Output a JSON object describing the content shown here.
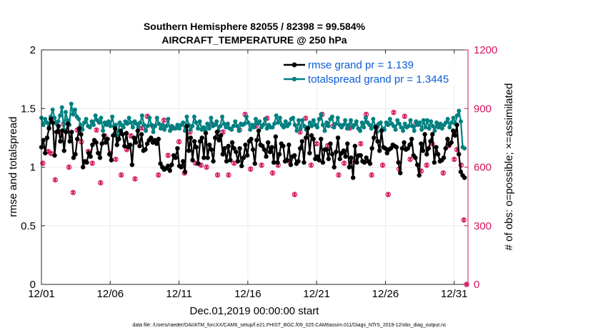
{
  "chart_data": {
    "type": "line",
    "title": "Southern Hemisphere 82055 / 82398 = 99.584%",
    "subtitle": "AIRCRAFT_TEMPERATURE @ 250 hPa",
    "xlabel": "Dec.01,2019 00:00:00 start",
    "ylabel": "rmse and totalspread",
    "y2label": "# of obs: o=possible; ×=assimilated",
    "footer": "data file: /Users/raeder/DAI/ATM_forcXX/CAM6_setup/f.e21.FHIST_BGC.f09_025.CAM6assim.011/Diags_NTrS_2019-12/obs_diag_output.nc",
    "x_tick_labels": [
      "12/01",
      "12/06",
      "12/11",
      "12/16",
      "12/21",
      "12/26",
      "12/31"
    ],
    "x_tick_days": [
      0,
      5,
      10,
      15,
      20,
      25,
      30
    ],
    "xlim": [
      0,
      31
    ],
    "ylim": [
      0,
      2
    ],
    "y_ticks": [
      0,
      0.5,
      1,
      1.5,
      2
    ],
    "y_tick_labels": [
      "0",
      "0.5",
      "1",
      "1.5",
      "2"
    ],
    "y2lim": [
      0,
      1200
    ],
    "y2_ticks": [
      0,
      300,
      600,
      900,
      1200
    ],
    "y2_tick_labels": [
      "0",
      "300",
      "600",
      "900",
      "1200"
    ],
    "colors": {
      "rmse": "#000000",
      "spread": "#008080",
      "obs": "#d4135d",
      "legend_text": "#0b5cd6",
      "grid": "#ebebeb"
    },
    "series": [
      {
        "name": "rmse grand pr = 1.139",
        "key": "rmse",
        "values": [
          1.17,
          1.23,
          1.12,
          1.25,
          1.33,
          1.41,
          1.38,
          1.1,
          1.3,
          1.35,
          1.22,
          1.31,
          1.14,
          1.3,
          1.37,
          1.22,
          1.3,
          1.08,
          1.11,
          1.24,
          1.33,
          1.28,
          1.0,
          1.05,
          1.04,
          1.12,
          1.09,
          1.19,
          1.23,
          1.21,
          1.12,
          1.08,
          1.2,
          1.27,
          1.21,
          1.24,
          1.11,
          1.06,
          1.27,
          1.33,
          1.19,
          1.24,
          1.31,
          1.28,
          1.18,
          1.29,
          1.17,
          1.19,
          1.02,
          1.25,
          1.21,
          1.31,
          1.18,
          1.28,
          1.14,
          1.15,
          1.2,
          1.23,
          1.25,
          1.21,
          1.23,
          1.2,
          1.24,
          1.03,
          1.0,
          0.98,
          0.99,
          1.01,
          0.97,
          1.02,
          1.1,
          1.08,
          1.16,
          1.01,
          1.0,
          1.05,
          0.96,
          1.35,
          1.14,
          1.25,
          1.06,
          1.22,
          1.17,
          1.03,
          1.22,
          1.25,
          1.08,
          1.29,
          1.08,
          1.19,
          1.15,
          1.05,
          1.25,
          1.3,
          1.23,
          1.27,
          1.11,
          1.16,
          1.05,
          1.18,
          1.06,
          1.21,
          1.16,
          1.13,
          1.05,
          1.16,
          1.01,
          1.08,
          1.19,
          1.1,
          1.22,
          1.24,
          1.15,
          1.03,
          1.23,
          1.31,
          1.19,
          1.18,
          1.15,
          1.09,
          1.21,
          1.13,
          1.17,
          1.04,
          1.26,
          1.04,
          1.11,
          1.2,
          1.18,
          1.05,
          1.06,
          1.19,
          1.02,
          1.09,
          1.1,
          1.03,
          1.05,
          1.16,
          1.22,
          1.04,
          1.25,
          1.33,
          1.12,
          1.27,
          1.24,
          1.07,
          1.09,
          1.06,
          1.24,
          1.04,
          1.15,
          1.15,
          1.07,
          1.2,
          1.11,
          1.0,
          1.13,
          1.25,
          1.07,
          1.12,
          1.14,
          1.09,
          1.2,
          1.0,
          1.08,
          0.91,
          1.18,
          1.04,
          1.1,
          1.1,
          1.05,
          1.04,
          1.08,
          1.05,
          1.03,
          1.16,
          1.25,
          1.34,
          1.22,
          1.14,
          1.31,
          1.17,
          1.16,
          1.12,
          1.15,
          1.16,
          1.19,
          1.18,
          1.17,
          1.04,
          0.95,
          1.16,
          1.21,
          1.15,
          1.16,
          1.19,
          1.24,
          1.1,
          1.08,
          1.02,
          0.93,
          1.2,
          1.14,
          1.28,
          1.11,
          1.16,
          1.22,
          1.28,
          1.04,
          1.17,
          1.11,
          1.05,
          1.06,
          1.08,
          1.16,
          1.24,
          1.19,
          1.21,
          1.31,
          1.27,
          1.36,
          1.11,
          0.96,
          0.93,
          0.91
        ],
        "marker": "asterisk"
      },
      {
        "name": "totalspread grand pr = 1.3445",
        "key": "spread",
        "values": [
          1.42,
          1.36,
          1.41,
          1.38,
          1.34,
          1.43,
          1.49,
          1.42,
          1.37,
          1.39,
          1.44,
          1.51,
          1.32,
          1.47,
          1.4,
          1.36,
          1.54,
          1.45,
          1.49,
          1.43,
          1.41,
          1.36,
          1.32,
          1.38,
          1.41,
          1.35,
          1.34,
          1.39,
          1.36,
          1.44,
          1.4,
          1.38,
          1.42,
          1.31,
          1.38,
          1.36,
          1.39,
          1.35,
          1.43,
          1.35,
          1.36,
          1.27,
          1.38,
          1.36,
          1.34,
          1.39,
          1.37,
          1.42,
          1.38,
          1.34,
          1.39,
          1.37,
          1.34,
          1.38,
          1.44,
          1.36,
          1.31,
          1.35,
          1.42,
          1.36,
          1.3,
          1.35,
          1.42,
          1.37,
          1.33,
          1.36,
          1.32,
          1.35,
          1.41,
          1.31,
          1.35,
          1.33,
          1.33,
          1.36,
          1.33,
          1.36,
          1.38,
          1.31,
          1.43,
          1.36,
          1.32,
          1.35,
          1.43,
          1.38,
          1.33,
          1.39,
          1.32,
          1.34,
          1.31,
          1.37,
          1.33,
          1.42,
          1.35,
          1.36,
          1.39,
          1.31,
          1.35,
          1.43,
          1.37,
          1.34,
          1.37,
          1.33,
          1.32,
          1.35,
          1.39,
          1.35,
          1.31,
          1.37,
          1.36,
          1.37,
          1.43,
          1.38,
          1.32,
          1.36,
          1.34,
          1.41,
          1.37,
          1.39,
          1.34,
          1.36,
          1.41,
          1.33,
          1.36,
          1.34,
          1.34,
          1.37,
          1.44,
          1.38,
          1.42,
          1.36,
          1.34,
          1.39,
          1.35,
          1.37,
          1.41,
          1.42,
          1.36,
          1.31,
          1.4,
          1.33,
          1.4,
          1.35,
          1.32,
          1.34,
          1.38,
          1.35,
          1.4,
          1.36,
          1.34,
          1.41,
          1.45,
          1.36,
          1.31,
          1.38,
          1.35,
          1.41,
          1.43,
          1.34,
          1.37,
          1.42,
          1.36,
          1.34,
          1.36,
          1.4,
          1.33,
          1.36,
          1.4,
          1.34,
          1.36,
          1.39,
          1.33,
          1.31,
          1.38,
          1.34,
          1.42,
          1.38,
          1.36,
          1.33,
          1.41,
          1.35,
          1.3,
          1.37,
          1.38,
          1.33,
          1.32,
          1.38,
          1.36,
          1.41,
          1.37,
          1.35,
          1.32,
          1.4,
          1.37,
          1.34,
          1.31,
          1.37,
          1.34,
          1.35,
          1.4,
          1.35,
          1.31,
          1.39,
          1.36,
          1.38,
          1.32,
          1.4,
          1.34,
          1.4,
          1.33,
          1.39,
          1.35,
          1.31,
          1.38,
          1.34,
          1.37,
          1.33,
          1.36,
          1.38,
          1.41,
          1.34,
          1.38,
          1.42,
          1.37,
          1.44,
          1.48,
          1.39,
          1.17,
          1.16
        ],
        "marker": "circle"
      }
    ],
    "obs_points": {
      "x_days": [
        0.1,
        0.5,
        0.7,
        1.0,
        1.3,
        1.6,
        2.0,
        2.3,
        2.6,
        2.9,
        3.4,
        3.7,
        4.0,
        4.3,
        4.6,
        5.0,
        5.4,
        5.8,
        6.2,
        6.5,
        6.8,
        7.3,
        7.7,
        8.1,
        8.5,
        8.9,
        9.2,
        9.6,
        10.0,
        10.4,
        10.8,
        11.2,
        11.6,
        12.0,
        12.4,
        12.8,
        13.2,
        13.6,
        14.0,
        14.4,
        14.8,
        15.2,
        15.6,
        16.0,
        16.4,
        16.8,
        17.2,
        17.6,
        18.0,
        18.4,
        18.8,
        19.2,
        19.6,
        20.0,
        20.4,
        20.8,
        21.2,
        21.6,
        22.0,
        22.4,
        22.8,
        23.2,
        23.6,
        24.0,
        24.4,
        24.8,
        25.2,
        25.6,
        26.0,
        26.4,
        26.8,
        27.2,
        27.6,
        28.0,
        28.4,
        28.8,
        29.2,
        29.6,
        30.0,
        30.2,
        30.5,
        30.7,
        30.9
      ],
      "counts": [
        620,
        680,
        670,
        535,
        780,
        820,
        600,
        470,
        790,
        730,
        680,
        620,
        790,
        520,
        760,
        670,
        640,
        560,
        690,
        760,
        540,
        800,
        860,
        810,
        560,
        840,
        660,
        800,
        730,
        570,
        780,
        620,
        610,
        600,
        820,
        560,
        780,
        560,
        620,
        790,
        870,
        590,
        810,
        610,
        850,
        570,
        610,
        810,
        630,
        460,
        780,
        850,
        610,
        720,
        870,
        710,
        810,
        560,
        620,
        800,
        630,
        720,
        870,
        560,
        810,
        610,
        460,
        880,
        590,
        860,
        640,
        820,
        580,
        610,
        720,
        810,
        570,
        710,
        640,
        690,
        610,
        330,
        0
      ]
    }
  }
}
